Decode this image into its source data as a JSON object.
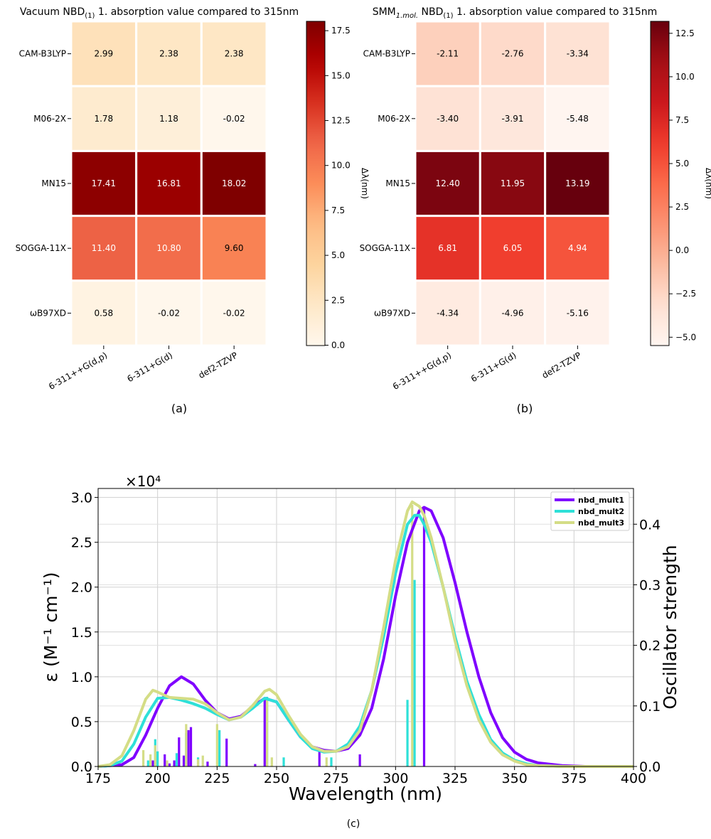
{
  "chart_data": [
    {
      "type": "heatmap",
      "title": "Vacuum NBD(1) 1. absorption value compared to 315nm",
      "title_main": "Vacuum NBD",
      "title_sub": "(1)",
      "title_rest": " 1. absorption value compared to 315nm",
      "panel_label": "(a)",
      "rows": [
        "CAM-B3LYP",
        "M06-2X",
        "MN15",
        "SOGGA-11X",
        "ωB97XD"
      ],
      "columns": [
        "6-311++G(d,p)",
        "6-311+G(d)",
        "def2-TZVP"
      ],
      "values": [
        [
          2.99,
          2.38,
          2.38
        ],
        [
          1.78,
          1.18,
          -0.02
        ],
        [
          17.41,
          16.81,
          18.02
        ],
        [
          11.4,
          10.8,
          9.6
        ],
        [
          0.58,
          -0.02,
          -0.02
        ]
      ],
      "cell_labels": [
        [
          "2.99",
          "2.38",
          "2.38"
        ],
        [
          "1.78",
          "1.18",
          "-0.02"
        ],
        [
          "17.41",
          "16.81",
          "18.02"
        ],
        [
          "11.40",
          "10.80",
          "9.60"
        ],
        [
          "0.58",
          "-0.02",
          "-0.02"
        ]
      ],
      "colormap": "OrRd-like (white → dark red)",
      "color_range": [
        -0.02,
        18.02
      ],
      "colorbar_label": "Δλ(nm)",
      "colorbar_ticks": [
        0.0,
        2.5,
        5.0,
        7.5,
        10.0,
        12.5,
        15.0,
        17.5
      ],
      "colorbar_tick_labels": [
        "0.0",
        "2.5",
        "5.0",
        "7.5",
        "10.0",
        "12.5",
        "15.0",
        "17.5"
      ]
    },
    {
      "type": "heatmap",
      "title": "SMM1.mol. NBD(1) 1. absorption value compared to 315nm",
      "title_main": "SMM",
      "title_sub": "1.mol.",
      "title_mid": " NBD",
      "title_sub2": "(1)",
      "title_rest": " 1. absorption value compared to 315nm",
      "panel_label": "(b)",
      "rows": [
        "CAM-B3LYP",
        "M06-2X",
        "MN15",
        "SOGGA-11X",
        "ωB97XD"
      ],
      "columns": [
        "6-311++G(d,p)",
        "6-311+G(d)",
        "def2-TZVP"
      ],
      "values": [
        [
          -2.11,
          -2.76,
          -3.34
        ],
        [
          -3.4,
          -3.91,
          -5.48
        ],
        [
          12.4,
          11.95,
          13.19
        ],
        [
          6.81,
          6.05,
          4.94
        ],
        [
          -4.34,
          -4.96,
          -5.16
        ]
      ],
      "cell_labels": [
        [
          "-2.11",
          "-2.76",
          "-3.34"
        ],
        [
          "-3.40",
          "-3.91",
          "-5.48"
        ],
        [
          "12.40",
          "11.95",
          "13.19"
        ],
        [
          "6.81",
          "6.05",
          "4.94"
        ],
        [
          "-4.34",
          "-4.96",
          "-5.16"
        ]
      ],
      "colormap": "Reds",
      "color_range": [
        -5.48,
        13.19
      ],
      "colorbar_label": "Δλ(nm)",
      "colorbar_ticks": [
        -5.0,
        -2.5,
        0.0,
        2.5,
        5.0,
        7.5,
        10.0,
        12.5
      ],
      "colorbar_tick_labels": [
        "−5.0",
        "−2.5",
        "0.0",
        "2.5",
        "5.0",
        "7.5",
        "10.0",
        "12.5"
      ]
    },
    {
      "type": "line",
      "panel_label": "(c)",
      "xlabel": "Wavelength (nm)",
      "ylabel_left": "ε (M⁻¹ cm⁻¹)",
      "ylabel_right": "Oscillator strength",
      "y_offset_label": "×10⁴",
      "xlim": [
        175,
        400
      ],
      "ylim_left": [
        0,
        3.1
      ],
      "ylim_right": [
        0,
        0.459
      ],
      "grid": true,
      "legend_position": "top-right",
      "x_ticks": [
        175,
        200,
        225,
        250,
        275,
        300,
        325,
        350,
        375,
        400
      ],
      "x_tick_labels": [
        "175",
        "200",
        "225",
        "250",
        "275",
        "300",
        "325",
        "350",
        "375",
        "400"
      ],
      "y_left_ticks": [
        0,
        0.5,
        1.0,
        1.5,
        2.0,
        2.5,
        3.0
      ],
      "y_left_tick_labels": [
        "0.0",
        "0.5",
        "1.0",
        "1.5",
        "2.0",
        "2.5",
        "3.0"
      ],
      "y_right_ticks": [
        0,
        0.1,
        0.2,
        0.3,
        0.4
      ],
      "y_right_tick_labels": [
        "0.0",
        "0.1",
        "0.2",
        "0.3",
        "0.4"
      ],
      "series": [
        {
          "name": "nbd_mult1",
          "color": "#7f00ff",
          "curve": [
            [
              175,
              0.0
            ],
            [
              185,
              0.02
            ],
            [
              190,
              0.1
            ],
            [
              195,
              0.35
            ],
            [
              200,
              0.65
            ],
            [
              205,
              0.9
            ],
            [
              210,
              1.0
            ],
            [
              215,
              0.92
            ],
            [
              220,
              0.74
            ],
            [
              225,
              0.6
            ],
            [
              230,
              0.53
            ],
            [
              235,
              0.56
            ],
            [
              240,
              0.67
            ],
            [
              245,
              0.76
            ],
            [
              250,
              0.72
            ],
            [
              255,
              0.52
            ],
            [
              260,
              0.33
            ],
            [
              265,
              0.22
            ],
            [
              270,
              0.18
            ],
            [
              275,
              0.17
            ],
            [
              280,
              0.2
            ],
            [
              285,
              0.35
            ],
            [
              290,
              0.65
            ],
            [
              295,
              1.2
            ],
            [
              300,
              1.9
            ],
            [
              305,
              2.5
            ],
            [
              310,
              2.85
            ],
            [
              312,
              2.89
            ],
            [
              315,
              2.85
            ],
            [
              320,
              2.55
            ],
            [
              325,
              2.05
            ],
            [
              330,
              1.5
            ],
            [
              335,
              1.0
            ],
            [
              340,
              0.6
            ],
            [
              345,
              0.32
            ],
            [
              350,
              0.16
            ],
            [
              355,
              0.08
            ],
            [
              360,
              0.04
            ],
            [
              370,
              0.01
            ],
            [
              380,
              0.0
            ],
            [
              400,
              0.0
            ]
          ],
          "sticks": [
            [
              198,
              0.01
            ],
            [
              203,
              0.02
            ],
            [
              205,
              0.005
            ],
            [
              207,
              0.01
            ],
            [
              209,
              0.048
            ],
            [
              211,
              0.018
            ],
            [
              213,
              0.06
            ],
            [
              214,
              0.065
            ],
            [
              221,
              0.008
            ],
            [
              229,
              0.046
            ],
            [
              241,
              0.004
            ],
            [
              245,
              0.11
            ],
            [
              268,
              0.028
            ],
            [
              285,
              0.02
            ],
            [
              312,
              0.425
            ]
          ]
        },
        {
          "name": "nbd_mult2",
          "color": "#2ee0d8",
          "curve": [
            [
              175,
              0.0
            ],
            [
              180,
              0.01
            ],
            [
              185,
              0.06
            ],
            [
              190,
              0.25
            ],
            [
              195,
              0.55
            ],
            [
              200,
              0.76
            ],
            [
              205,
              0.77
            ],
            [
              210,
              0.74
            ],
            [
              215,
              0.7
            ],
            [
              220,
              0.65
            ],
            [
              225,
              0.58
            ],
            [
              230,
              0.52
            ],
            [
              235,
              0.55
            ],
            [
              240,
              0.65
            ],
            [
              245,
              0.76
            ],
            [
              250,
              0.72
            ],
            [
              255,
              0.52
            ],
            [
              260,
              0.33
            ],
            [
              265,
              0.2
            ],
            [
              270,
              0.16
            ],
            [
              275,
              0.17
            ],
            [
              280,
              0.25
            ],
            [
              285,
              0.45
            ],
            [
              290,
              0.85
            ],
            [
              295,
              1.45
            ],
            [
              300,
              2.15
            ],
            [
              305,
              2.7
            ],
            [
              308,
              2.8
            ],
            [
              310,
              2.8
            ],
            [
              312,
              2.7
            ],
            [
              315,
              2.5
            ],
            [
              320,
              2.0
            ],
            [
              325,
              1.45
            ],
            [
              330,
              0.95
            ],
            [
              335,
              0.58
            ],
            [
              340,
              0.3
            ],
            [
              345,
              0.15
            ],
            [
              350,
              0.07
            ],
            [
              355,
              0.03
            ],
            [
              360,
              0.01
            ],
            [
              370,
              0.0
            ],
            [
              400,
              0.0
            ]
          ],
          "sticks": [
            [
              196,
              0.01
            ],
            [
              199,
              0.045
            ],
            [
              200,
              0.025
            ],
            [
              208,
              0.022
            ],
            [
              212,
              0.055
            ],
            [
              217,
              0.015
            ],
            [
              226,
              0.06
            ],
            [
              246,
              0.115
            ],
            [
              253,
              0.015
            ],
            [
              273,
              0.015
            ],
            [
              305,
              0.11
            ],
            [
              308,
              0.308
            ]
          ]
        },
        {
          "name": "nbd_mult3",
          "color": "#d4dd86",
          "curve": [
            [
              175,
              0.0
            ],
            [
              180,
              0.02
            ],
            [
              185,
              0.12
            ],
            [
              190,
              0.4
            ],
            [
              195,
              0.75
            ],
            [
              198,
              0.85
            ],
            [
              200,
              0.83
            ],
            [
              205,
              0.77
            ],
            [
              210,
              0.76
            ],
            [
              215,
              0.75
            ],
            [
              220,
              0.7
            ],
            [
              225,
              0.6
            ],
            [
              230,
              0.52
            ],
            [
              235,
              0.55
            ],
            [
              240,
              0.68
            ],
            [
              245,
              0.84
            ],
            [
              247,
              0.86
            ],
            [
              250,
              0.8
            ],
            [
              255,
              0.57
            ],
            [
              260,
              0.36
            ],
            [
              265,
              0.22
            ],
            [
              270,
              0.17
            ],
            [
              275,
              0.17
            ],
            [
              280,
              0.22
            ],
            [
              285,
              0.4
            ],
            [
              290,
              0.85
            ],
            [
              295,
              1.55
            ],
            [
              300,
              2.3
            ],
            [
              305,
              2.85
            ],
            [
              307,
              2.95
            ],
            [
              310,
              2.9
            ],
            [
              312,
              2.8
            ],
            [
              315,
              2.55
            ],
            [
              320,
              2.0
            ],
            [
              325,
              1.4
            ],
            [
              330,
              0.9
            ],
            [
              335,
              0.52
            ],
            [
              340,
              0.27
            ],
            [
              345,
              0.13
            ],
            [
              350,
              0.06
            ],
            [
              355,
              0.02
            ],
            [
              360,
              0.01
            ],
            [
              370,
              0.0
            ],
            [
              400,
              0.0
            ]
          ],
          "sticks": [
            [
              194,
              0.027
            ],
            [
              197,
              0.02
            ],
            [
              199,
              0.035
            ],
            [
              204,
              0.01
            ],
            [
              212,
              0.07
            ],
            [
              217,
              0.012
            ],
            [
              219,
              0.018
            ],
            [
              225,
              0.07
            ],
            [
              246,
              0.11
            ],
            [
              248,
              0.015
            ],
            [
              271,
              0.015
            ],
            [
              307,
              0.432
            ]
          ]
        }
      ]
    }
  ]
}
